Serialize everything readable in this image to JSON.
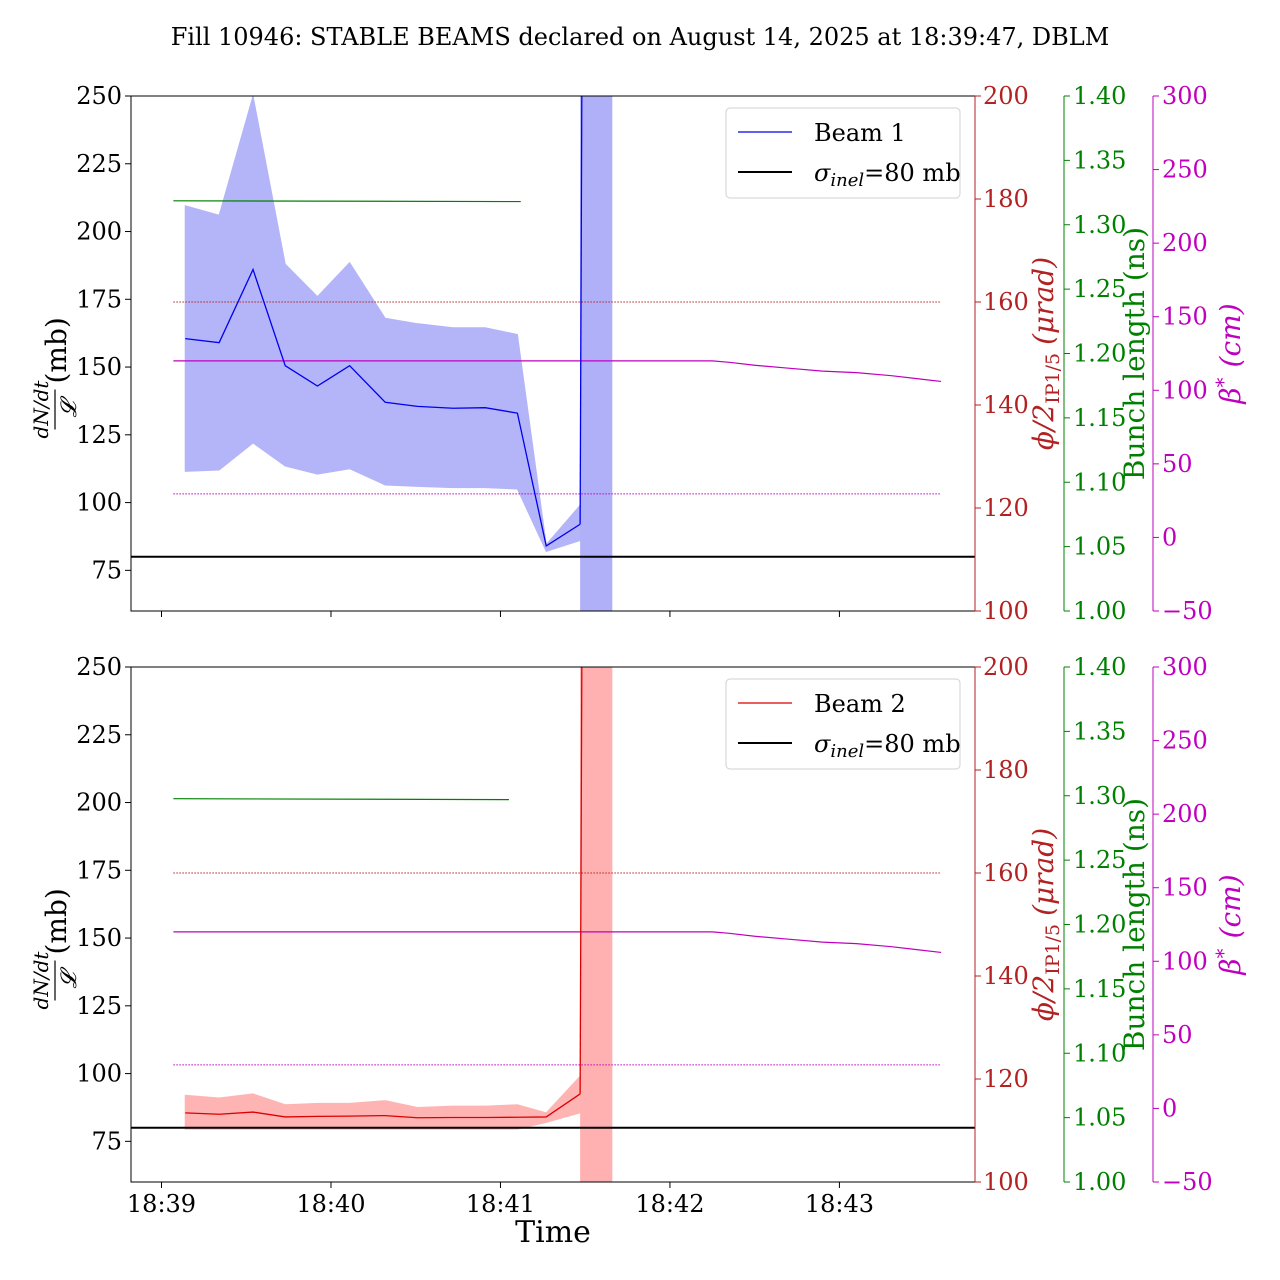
{
  "chart_data": {
    "type": "line",
    "title": "Fill 10946: STABLE BEAMS declared on August 14, 2025 at 18:39:47, DBLM",
    "xlabel": "Time",
    "x_ticks": [
      "18:39",
      "18:40",
      "18:41",
      "18:42",
      "18:43"
    ],
    "x_tick_minutes": [
      0,
      1,
      2,
      3,
      4
    ],
    "x_range_minutes": [
      -0.18,
      4.8
    ],
    "axes": {
      "left": {
        "label_num": "dN/dt",
        "label_den": "𝓛",
        "label_unit": "(mb)",
        "range": [
          60,
          250
        ],
        "ticks": [
          75,
          100,
          125,
          150,
          175,
          200,
          225,
          250
        ],
        "color": "#000000"
      },
      "crossing": {
        "label": "ϕ/2",
        "label_sub": "IP1/5",
        "label_unit": "(μrad)",
        "range": [
          100,
          200
        ],
        "ticks": [
          100,
          120,
          140,
          160,
          180,
          200
        ],
        "color": "#b22222"
      },
      "bunch": {
        "label": "Bunch length (ns)",
        "range": [
          1.0,
          1.4
        ],
        "ticks": [
          "1.00",
          "1.05",
          "1.10",
          "1.15",
          "1.20",
          "1.25",
          "1.30",
          "1.35",
          "1.40"
        ],
        "color": "#008000"
      },
      "beta": {
        "label": "β",
        "label_sup": "*",
        "label_unit": "(cm)",
        "range": [
          -50,
          300
        ],
        "ticks": [
          "−50",
          "0",
          "50",
          "100",
          "150",
          "200",
          "250",
          "300"
        ],
        "color": "#bf00bf"
      }
    },
    "reference_line": {
      "label_prefix": "σ",
      "label_sub": "inel",
      "label_suffix": "=80 mb",
      "value": 80,
      "color": "#000000"
    },
    "panels": [
      {
        "beam_label": "Beam 1",
        "color": "#0000ee",
        "fill_color": "#b0b0f8",
        "series_x": [
          0.14,
          0.34,
          0.54,
          0.73,
          0.92,
          1.11,
          1.32,
          1.51,
          1.72,
          1.91,
          2.1,
          2.27,
          2.47
        ],
        "series_mean": [
          160.5,
          159,
          186,
          150.5,
          143,
          150.5,
          137,
          135.5,
          134.8,
          135,
          133,
          84,
          92
        ],
        "series_upper": [
          209.5,
          206,
          250,
          188,
          176,
          188.5,
          168,
          166,
          164.5,
          164.5,
          162,
          84.5,
          99
        ],
        "series_lower": [
          111.5,
          112,
          122,
          113.5,
          110.5,
          112.5,
          106.5,
          106,
          105.5,
          105.5,
          105,
          82,
          86
        ],
        "spike_x": [
          2.47,
          2.48
        ],
        "spike_mean": [
          92,
          250
        ],
        "band_x_range": [
          2.47,
          2.66
        ],
        "bunch_x": [
          0.07,
          2.12
        ],
        "bunch_y": [
          1.3186,
          1.318
        ],
        "crossing_dotted": {
          "value": 160,
          "x_range": [
            0.07,
            4.6
          ]
        },
        "beta_line": {
          "x": [
            0.07,
            2.27,
            3.25,
            3.35,
            3.5,
            3.7,
            3.9,
            4.1,
            4.3,
            4.45,
            4.6
          ],
          "y": [
            120,
            120,
            120,
            119,
            117,
            115,
            113,
            112,
            110,
            108,
            106
          ]
        },
        "beta_dotted": {
          "value": 29.6,
          "x_range": [
            0.07,
            4.6
          ]
        }
      },
      {
        "beam_label": "Beam 2",
        "color": "#dd0000",
        "fill_color": "#ffb0b0",
        "series_x": [
          0.14,
          0.34,
          0.54,
          0.73,
          0.92,
          1.11,
          1.32,
          1.51,
          1.72,
          1.91,
          2.1,
          2.27,
          2.47
        ],
        "series_mean": [
          85.5,
          85,
          85.8,
          84,
          84.2,
          84.3,
          84.5,
          83.7,
          83.8,
          83.8,
          83.9,
          84,
          92.5
        ],
        "series_upper": [
          92,
          91,
          92.5,
          88.5,
          89,
          89,
          90,
          87.5,
          88,
          88,
          88.5,
          85.5,
          99
        ],
        "series_lower": [
          79.5,
          79.5,
          79.5,
          79.5,
          79.5,
          79.5,
          79.5,
          79.5,
          79.5,
          79.5,
          79.5,
          82,
          85.5
        ],
        "spike_x": [
          2.47,
          2.48
        ],
        "spike_mean": [
          92.5,
          250
        ],
        "band_x_range": [
          2.47,
          2.66
        ],
        "bunch_x": [
          0.07,
          2.05
        ],
        "bunch_y": [
          1.2977,
          1.297
        ],
        "crossing_dotted": {
          "value": 160,
          "x_range": [
            0.07,
            4.6
          ]
        },
        "beta_line": {
          "x": [
            0.07,
            2.27,
            3.25,
            3.35,
            3.5,
            3.7,
            3.9,
            4.1,
            4.3,
            4.45,
            4.6
          ],
          "y": [
            120,
            120,
            120,
            119,
            117,
            115,
            113,
            112,
            110,
            108,
            106
          ]
        },
        "beta_dotted": {
          "value": 29.6,
          "x_range": [
            0.07,
            4.6
          ]
        }
      }
    ]
  }
}
